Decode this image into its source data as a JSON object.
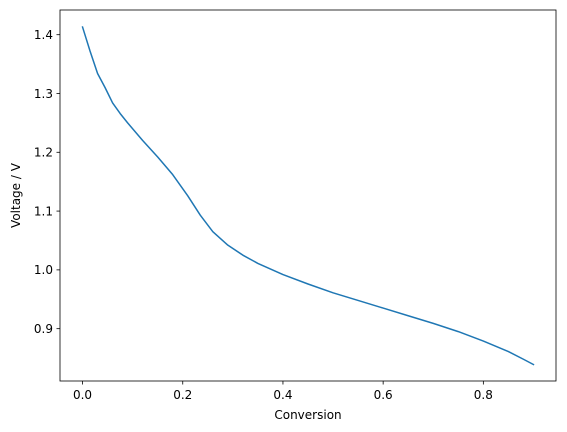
{
  "chart_data": {
    "type": "line",
    "title": "",
    "xlabel": "Conversion",
    "ylabel": "Voltage / V",
    "xlim": [
      -0.045,
      0.945
    ],
    "ylim": [
      0.811,
      1.442
    ],
    "xticks": [
      0.0,
      0.2,
      0.4,
      0.6,
      0.8
    ],
    "xtick_labels": [
      "0.0",
      "0.2",
      "0.4",
      "0.6",
      "0.8"
    ],
    "yticks": [
      0.9,
      1.0,
      1.1,
      1.2,
      1.3,
      1.4
    ],
    "ytick_labels": [
      "0.9",
      "1.0",
      "1.1",
      "1.2",
      "1.3",
      "1.4"
    ],
    "grid": false,
    "series": [
      {
        "color": "#1f77b4",
        "x": [
          0.0,
          0.015,
          0.03,
          0.045,
          0.06,
          0.075,
          0.09,
          0.12,
          0.15,
          0.18,
          0.21,
          0.235,
          0.26,
          0.29,
          0.32,
          0.35,
          0.4,
          0.45,
          0.5,
          0.55,
          0.6,
          0.65,
          0.7,
          0.75,
          0.8,
          0.85,
          0.88,
          0.9
        ],
        "y": [
          1.413,
          1.372,
          1.334,
          1.31,
          1.284,
          1.266,
          1.25,
          1.22,
          1.192,
          1.162,
          1.126,
          1.093,
          1.065,
          1.042,
          1.025,
          1.011,
          0.992,
          0.976,
          0.961,
          0.948,
          0.935,
          0.922,
          0.909,
          0.895,
          0.879,
          0.861,
          0.848,
          0.839
        ]
      }
    ]
  }
}
